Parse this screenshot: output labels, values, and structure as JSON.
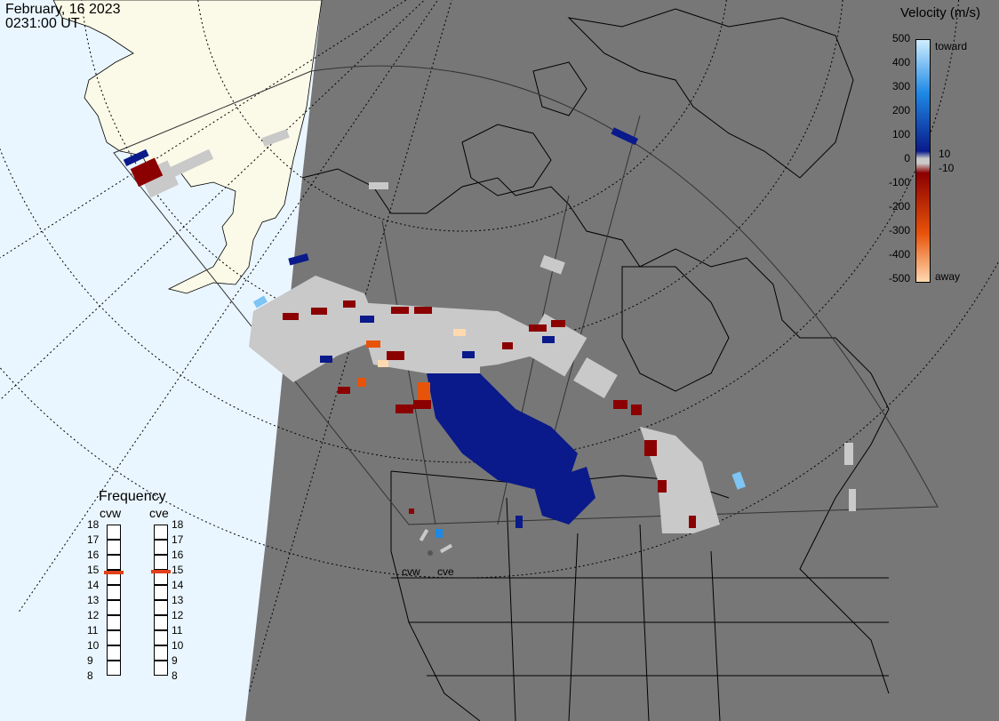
{
  "header": {
    "date": "February, 16 2023",
    "time": "0231:00 UT"
  },
  "legend": {
    "title": "Velocity (m/s)",
    "ticks": [
      "500",
      "400",
      "300",
      "200",
      "100",
      "0",
      "-100",
      "-200",
      "-300",
      "-400",
      "-500"
    ],
    "inner_pos": "10",
    "inner_neg": "-10",
    "toward_label": "toward",
    "away_label": "away",
    "colors": {
      "toward_high": "#cfeeff",
      "toward_mid": "#1e88e5",
      "toward_low": "#0a1a8a",
      "zero": "#c9c9c9",
      "away_low": "#8b0000",
      "away_mid": "#e8530a",
      "away_high": "#ffd9b0",
      "ground_scatter": "#c9c9c9",
      "land": "#777777",
      "daylight": "#eaf6ff",
      "sunlit_land": "#fbf9e8"
    }
  },
  "frequency": {
    "title": "Frequency",
    "radars": [
      {
        "name": "cvw",
        "value_mhz": 14.8
      },
      {
        "name": "cve",
        "value_mhz": 14.9
      }
    ],
    "ticks": [
      "18",
      "17",
      "16",
      "15",
      "14",
      "13",
      "12",
      "11",
      "10",
      "9",
      "8"
    ]
  },
  "site_labels": [
    "cvw",
    "cve"
  ]
}
